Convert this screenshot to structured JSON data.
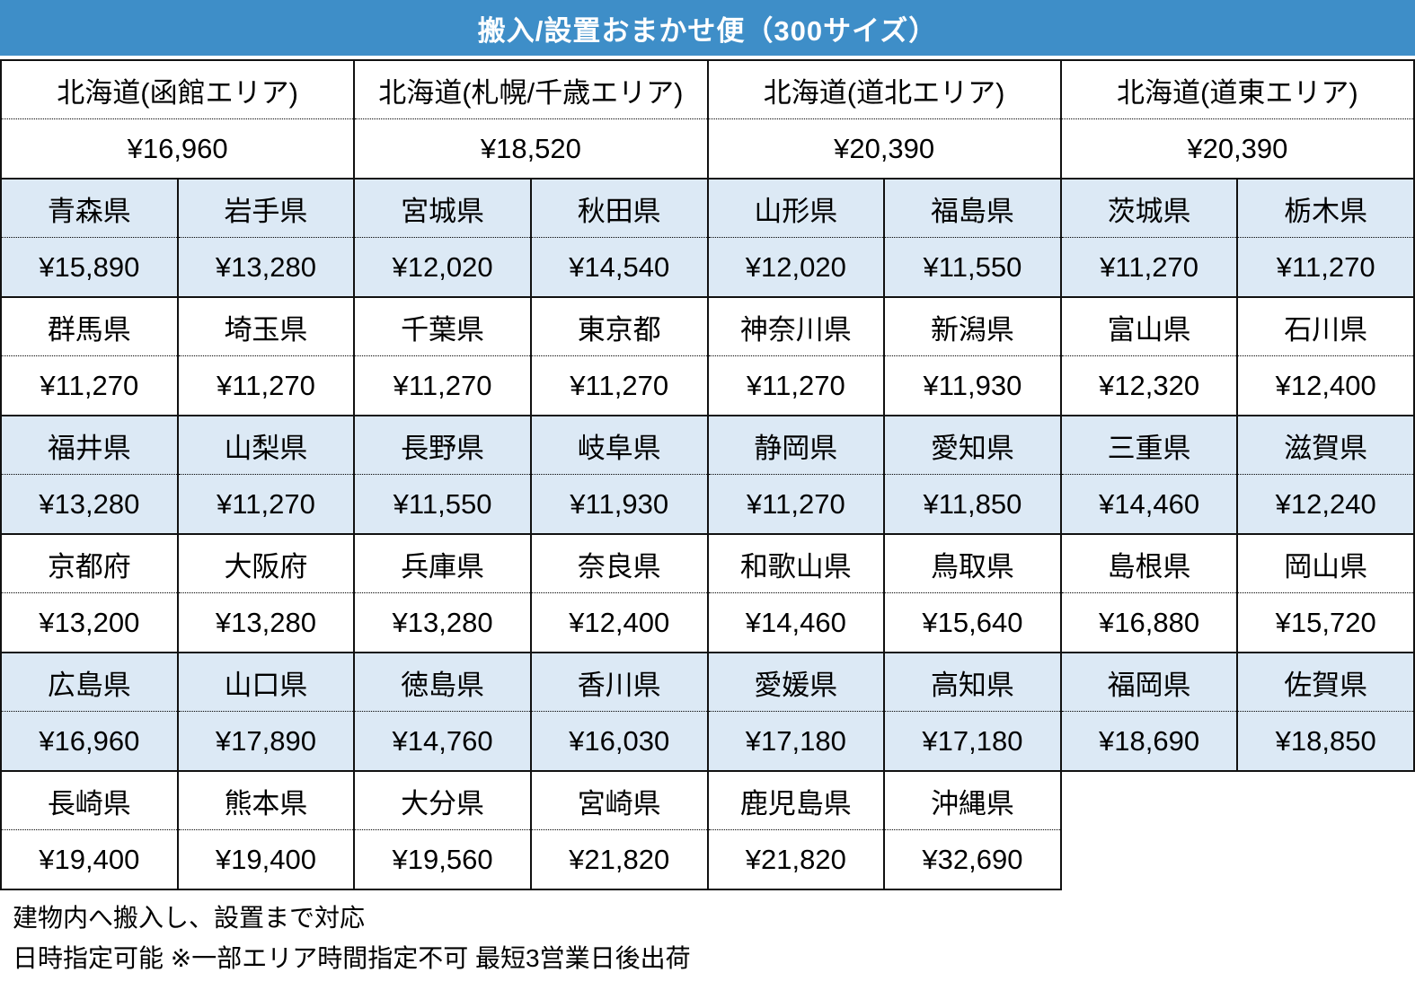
{
  "title": "搬入/設置おまかせ便（300サイズ）",
  "colors": {
    "header_bg": "#3E8EC8",
    "header_text": "#FFFFFF",
    "shaded_row_bg": "#DCE9F5",
    "plain_row_bg": "#FFFFFF",
    "border": "#111111"
  },
  "table": {
    "columns": 8,
    "groups": [
      {
        "span": 2,
        "shaded": false,
        "cells": [
          {
            "name": "北海道(函館エリア)",
            "price": "¥16,960"
          },
          {
            "name": "北海道(札幌/千歳エリア)",
            "price": "¥18,520"
          },
          {
            "name": "北海道(道北エリア)",
            "price": "¥20,390"
          },
          {
            "name": "北海道(道東エリア)",
            "price": "¥20,390"
          }
        ]
      },
      {
        "span": 1,
        "shaded": true,
        "cells": [
          {
            "name": "青森県",
            "price": "¥15,890"
          },
          {
            "name": "岩手県",
            "price": "¥13,280"
          },
          {
            "name": "宮城県",
            "price": "¥12,020"
          },
          {
            "name": "秋田県",
            "price": "¥14,540"
          },
          {
            "name": "山形県",
            "price": "¥12,020"
          },
          {
            "name": "福島県",
            "price": "¥11,550"
          },
          {
            "name": "茨城県",
            "price": "¥11,270"
          },
          {
            "name": "栃木県",
            "price": "¥11,270"
          }
        ]
      },
      {
        "span": 1,
        "shaded": false,
        "cells": [
          {
            "name": "群馬県",
            "price": "¥11,270"
          },
          {
            "name": "埼玉県",
            "price": "¥11,270"
          },
          {
            "name": "千葉県",
            "price": "¥11,270"
          },
          {
            "name": "東京都",
            "price": "¥11,270"
          },
          {
            "name": "神奈川県",
            "price": "¥11,270"
          },
          {
            "name": "新潟県",
            "price": "¥11,930"
          },
          {
            "name": "富山県",
            "price": "¥12,320"
          },
          {
            "name": "石川県",
            "price": "¥12,400"
          }
        ]
      },
      {
        "span": 1,
        "shaded": true,
        "cells": [
          {
            "name": "福井県",
            "price": "¥13,280"
          },
          {
            "name": "山梨県",
            "price": "¥11,270"
          },
          {
            "name": "長野県",
            "price": "¥11,550"
          },
          {
            "name": "岐阜県",
            "price": "¥11,930"
          },
          {
            "name": "静岡県",
            "price": "¥11,270"
          },
          {
            "name": "愛知県",
            "price": "¥11,850"
          },
          {
            "name": "三重県",
            "price": "¥14,460"
          },
          {
            "name": "滋賀県",
            "price": "¥12,240"
          }
        ]
      },
      {
        "span": 1,
        "shaded": false,
        "cells": [
          {
            "name": "京都府",
            "price": "¥13,200"
          },
          {
            "name": "大阪府",
            "price": "¥13,280"
          },
          {
            "name": "兵庫県",
            "price": "¥13,280"
          },
          {
            "name": "奈良県",
            "price": "¥12,400"
          },
          {
            "name": "和歌山県",
            "price": "¥14,460"
          },
          {
            "name": "鳥取県",
            "price": "¥15,640"
          },
          {
            "name": "島根県",
            "price": "¥16,880"
          },
          {
            "name": "岡山県",
            "price": "¥15,720"
          }
        ]
      },
      {
        "span": 1,
        "shaded": true,
        "cells": [
          {
            "name": "広島県",
            "price": "¥16,960"
          },
          {
            "name": "山口県",
            "price": "¥17,890"
          },
          {
            "name": "徳島県",
            "price": "¥14,760"
          },
          {
            "name": "香川県",
            "price": "¥16,030"
          },
          {
            "name": "愛媛県",
            "price": "¥17,180"
          },
          {
            "name": "高知県",
            "price": "¥17,180"
          },
          {
            "name": "福岡県",
            "price": "¥18,690"
          },
          {
            "name": "佐賀県",
            "price": "¥18,850"
          }
        ]
      },
      {
        "span": 1,
        "shaded": false,
        "cells": [
          {
            "name": "長崎県",
            "price": "¥19,400"
          },
          {
            "name": "熊本県",
            "price": "¥19,400"
          },
          {
            "name": "大分県",
            "price": "¥19,560"
          },
          {
            "name": "宮崎県",
            "price": "¥21,820"
          },
          {
            "name": "鹿児島県",
            "price": "¥21,820"
          },
          {
            "name": "沖縄県",
            "price": "¥32,690"
          }
        ]
      }
    ]
  },
  "footer": {
    "line1": "建物内へ搬入し、設置まで対応",
    "line2": "日時指定可能 ※一部エリア時間指定不可 最短3営業日後出荷"
  }
}
